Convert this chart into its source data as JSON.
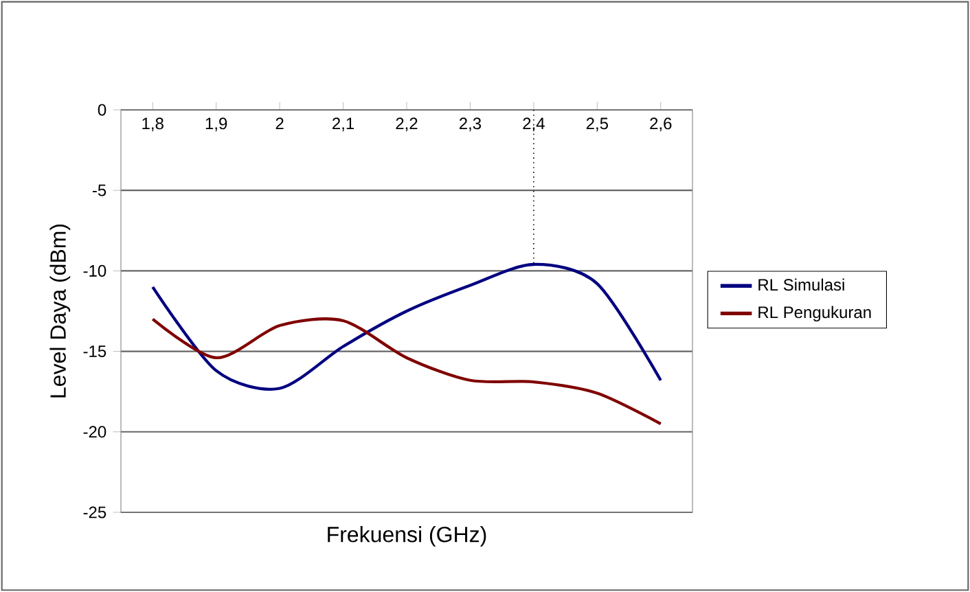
{
  "chart_data": {
    "type": "line",
    "xlabel": "Frekuensi (GHz)",
    "ylabel": "Level Daya (dBm)",
    "categories": [
      "1,8",
      "1,9",
      "2",
      "2,1",
      "2,2",
      "2,3",
      "2,4",
      "2,5",
      "2,6"
    ],
    "series": [
      {
        "name": "RL Simulasi",
        "color": "#000080",
        "values": [
          -11.0,
          -16.2,
          -17.3,
          -14.7,
          -12.5,
          -10.9,
          -9.6,
          -10.8,
          -16.8
        ]
      },
      {
        "name": "RL Pengukuran",
        "color": "#800000",
        "values": [
          -13.0,
          -15.4,
          -13.4,
          -13.1,
          -15.4,
          -16.8,
          -16.9,
          -17.6,
          -19.5
        ]
      }
    ],
    "ylim": [
      -25,
      0
    ],
    "yticks": [
      -25,
      -20,
      -15,
      -10,
      -5,
      0
    ],
    "grid": "y",
    "legend": "right",
    "marker": "none",
    "line_style": "solid",
    "ref_lines": [
      {
        "axis": "x",
        "value": "2,4",
        "line_style": "dotted"
      }
    ]
  }
}
